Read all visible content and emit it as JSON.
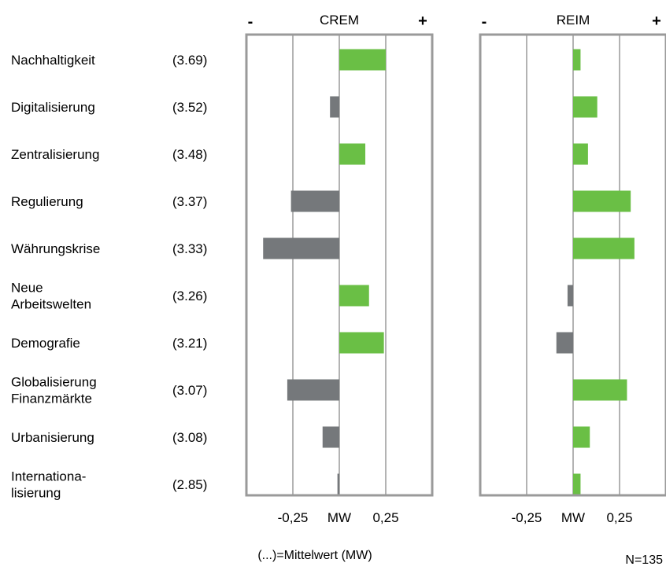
{
  "chart_data": {
    "type": "bar",
    "orientation": "horizontal",
    "categories": [
      [
        "Nachhaltigkeit"
      ],
      [
        "Digitalisierung"
      ],
      [
        "Zentralisierung"
      ],
      [
        "Regulierung"
      ],
      [
        "Währungskrise"
      ],
      [
        "Neue",
        "Arbeitswelten"
      ],
      [
        "Demografie"
      ],
      [
        "Globalisierung",
        "Finanzmärkte"
      ],
      [
        "Urbanisierung"
      ],
      [
        "Internationa-",
        "lisierung"
      ]
    ],
    "mean_labels": [
      "(3.69)",
      "(3.52)",
      "(3.48)",
      "(3.37)",
      "(3.33)",
      "(3.26)",
      "(3.21)",
      "(3.07)",
      "(3.08)",
      "(2.85)"
    ],
    "series": [
      {
        "name": "CREM",
        "values": [
          0.25,
          -0.05,
          0.14,
          -0.26,
          -0.41,
          0.16,
          0.24,
          -0.28,
          -0.09,
          -0.01
        ]
      },
      {
        "name": "REIM",
        "values": [
          0.04,
          0.13,
          0.08,
          0.31,
          0.33,
          -0.03,
          -0.09,
          0.29,
          0.09,
          0.04
        ]
      }
    ],
    "xlim": [
      -0.5,
      0.5
    ],
    "xticks": [
      -0.25,
      0,
      0.25
    ],
    "xtick_labels": [
      "-0,25",
      "MW",
      "0,25"
    ],
    "minus_label": "-",
    "plus_label": "+",
    "grid": true,
    "footnote": "(...)=Mittelwert (MW)",
    "sample_size": "N=135",
    "colors": {
      "positive": "#6abf45",
      "negative": "#75787b",
      "frame": "#9a9a9a",
      "gridline": "#9a9a9a"
    }
  }
}
